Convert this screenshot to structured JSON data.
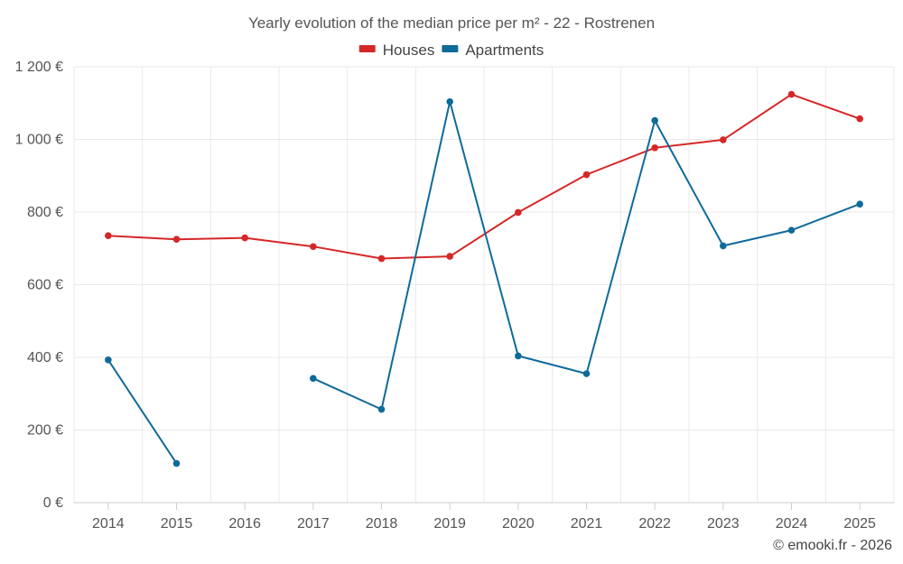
{
  "chart_data": {
    "type": "line",
    "title": "Yearly evolution of the median price per m² - 22 - Rostrenen",
    "xlabel": "",
    "ylabel": "",
    "categories": [
      "2014",
      "2015",
      "2016",
      "2017",
      "2018",
      "2019",
      "2020",
      "2021",
      "2022",
      "2023",
      "2024",
      "2025"
    ],
    "ylim": [
      0,
      1200
    ],
    "yticks": [
      0,
      200,
      400,
      600,
      800,
      1000,
      1200
    ],
    "ytick_labels": [
      "0 €",
      "200 €",
      "400 €",
      "600 €",
      "800 €",
      "1 000 €",
      "1 200 €"
    ],
    "grid": true,
    "legend_position": "top-center",
    "series": [
      {
        "name": "Houses",
        "color": "#d62728",
        "values": [
          735,
          725,
          729,
          705,
          672,
          678,
          799,
          903,
          977,
          999,
          1124,
          1057
        ]
      },
      {
        "name": "Apartments",
        "color": "#0f6a9a",
        "values": [
          393,
          108,
          null,
          342,
          257,
          1104,
          404,
          355,
          1052,
          707,
          750,
          822
        ]
      }
    ]
  },
  "credit": "© emooki.fr - 2026"
}
